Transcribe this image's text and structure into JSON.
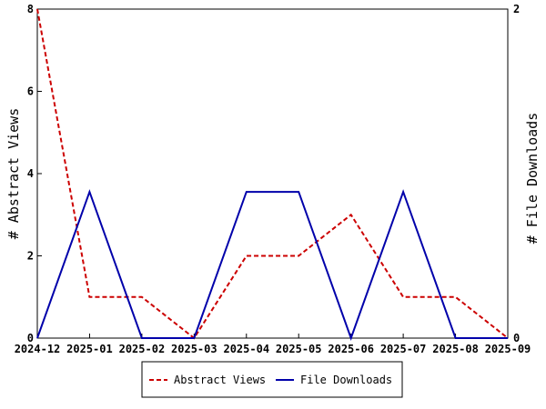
{
  "chart_data": {
    "type": "line",
    "x": [
      "2024-12",
      "2025-01",
      "2025-02",
      "2025-03",
      "2025-04",
      "2025-05",
      "2025-06",
      "2025-07",
      "2025-08",
      "2025-09"
    ],
    "series": [
      {
        "name": "Abstract Views",
        "axis": "left",
        "color": "#cc0000",
        "style": "dashed",
        "values": [
          8,
          1,
          1,
          0,
          2,
          2,
          3,
          1,
          1,
          0
        ]
      },
      {
        "name": "File Downloads",
        "axis": "right",
        "color": "#0000aa",
        "style": "solid",
        "values": [
          0,
          0.889,
          0,
          0,
          0.889,
          0.889,
          0,
          0.889,
          0,
          0
        ]
      }
    ],
    "ylabel": "# Abstract Views",
    "y2label": "# File Downloads",
    "ylim": [
      0,
      8
    ],
    "y2lim": [
      0,
      2
    ],
    "yticks": [
      "0",
      "2",
      "4",
      "6",
      "8"
    ],
    "y2ticks": [
      "0",
      "2"
    ],
    "grid": false,
    "legend_position": "bottom"
  }
}
